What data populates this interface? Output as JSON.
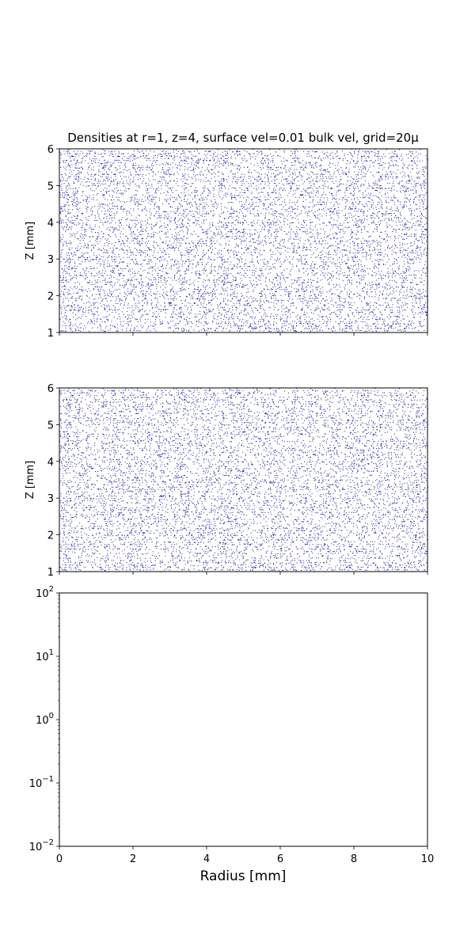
{
  "chart_data": [
    {
      "type": "scatter",
      "title": "Densities at r=1, z=4, surface vel=0.01 bulk vel, grid=20μ",
      "ylabel": "Z [mm]",
      "xlim": [
        0,
        10
      ],
      "ylim": [
        1,
        6
      ],
      "x_ticks": [
        "0",
        "2",
        "4",
        "6",
        "8",
        "10"
      ],
      "x_ticks_labeled": false,
      "y_ticks": [
        "1",
        "2",
        "3",
        "4",
        "5",
        "6"
      ],
      "marker_color": "#1a1aa0",
      "series": [
        {
          "approx_density": "uniform, ~0.25 points per 0.02 mm x 0.02 mm cell",
          "x_range": [
            0,
            10
          ],
          "y_range": [
            1,
            6
          ]
        }
      ]
    },
    {
      "type": "scatter",
      "ylabel": "Z [mm]",
      "xlim": [
        0,
        10
      ],
      "ylim": [
        1,
        6
      ],
      "x_ticks": [
        "0",
        "2",
        "4",
        "6",
        "8",
        "10"
      ],
      "x_ticks_labeled": false,
      "y_ticks": [
        "1",
        "2",
        "3",
        "4",
        "5",
        "6"
      ],
      "marker_color": "#1a1aa0",
      "series": [
        {
          "approx_density": "uniform, ~0.25 points per 0.02 mm x 0.02 mm cell",
          "x_range": [
            0,
            10
          ],
          "y_range": [
            1,
            6
          ]
        }
      ]
    },
    {
      "type": "line",
      "xlabel": "Radius [mm]",
      "xlim": [
        0,
        10
      ],
      "ylim": [
        0.01,
        100
      ],
      "y_scale": "log",
      "x_ticks": [
        "0",
        "2",
        "4",
        "6",
        "8",
        "10"
      ],
      "y_ticks": [
        {
          "base": "10",
          "exp": "−2"
        },
        {
          "base": "10",
          "exp": "−1"
        },
        {
          "base": "10",
          "exp": "0"
        },
        {
          "base": "10",
          "exp": "1"
        },
        {
          "base": "10",
          "exp": "2"
        }
      ],
      "series": []
    }
  ]
}
